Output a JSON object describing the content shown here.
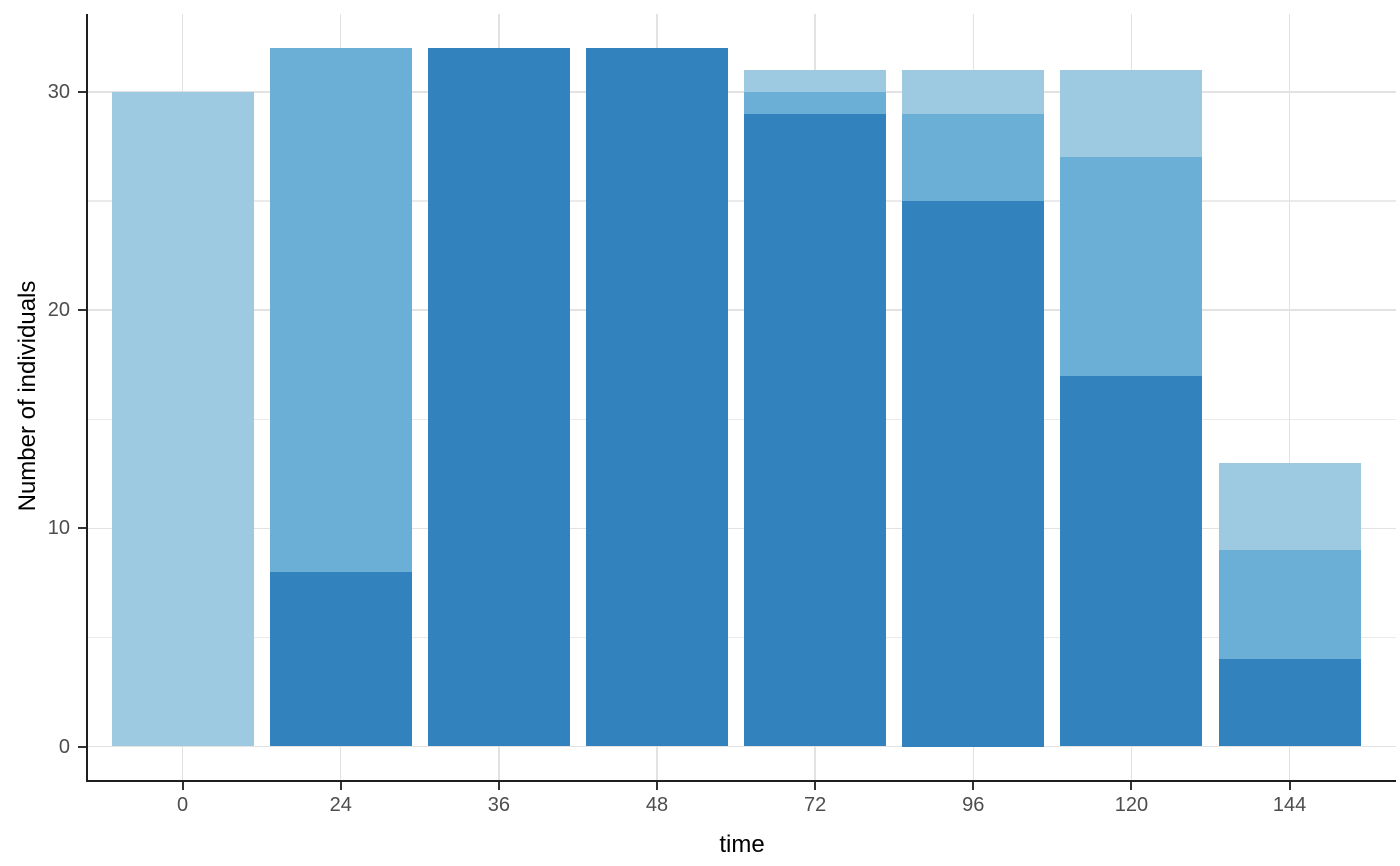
{
  "chart_data": {
    "type": "bar",
    "stacked": true,
    "title": "",
    "xlabel": "time",
    "ylabel": "Number of individuals",
    "categories": [
      "0",
      "24",
      "36",
      "48",
      "72",
      "96",
      "120",
      "144"
    ],
    "series": [
      {
        "name": "dark-blue",
        "color": "#3182BD",
        "values": [
          0,
          8,
          32,
          32,
          29,
          25,
          17,
          4
        ]
      },
      {
        "name": "medium-blue",
        "color": "#6BAED6",
        "values": [
          0,
          24,
          0,
          0,
          1,
          4,
          10,
          5
        ]
      },
      {
        "name": "light-blue",
        "color": "#9ECAE1",
        "values": [
          30,
          0,
          0,
          0,
          1,
          2,
          4,
          4
        ]
      }
    ],
    "totals": [
      30,
      32,
      32,
      32,
      31,
      31,
      31,
      13
    ],
    "y_ticks": [
      0,
      10,
      20,
      30
    ],
    "y_minor_gridlines": [
      5,
      15,
      25
    ],
    "ylim": [
      0,
      33.6
    ],
    "grid": true,
    "legend_position": "none",
    "colors": {
      "axis_line": "#1F1F1F",
      "tick_mark": "#333333",
      "tick_label": "#4D4D4D",
      "axis_title": "#000000",
      "grid_major": "#E2E2E2",
      "grid_minor": "#EAEAEA",
      "background": "#FFFFFF"
    }
  }
}
